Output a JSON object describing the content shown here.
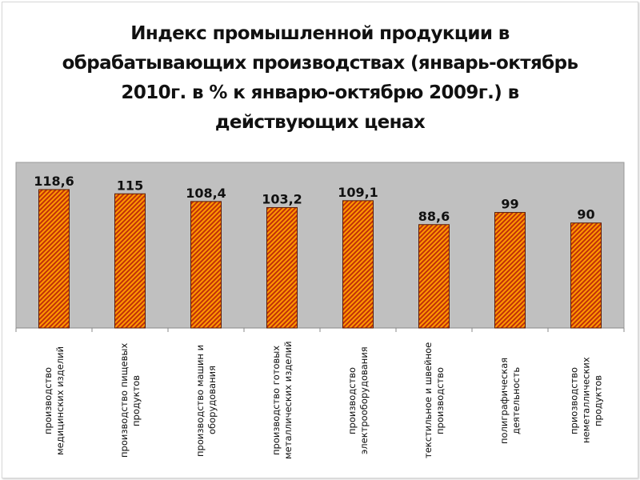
{
  "chart_data": {
    "type": "bar",
    "title": "Индекс промышленной продукции в обрабатывающих производствах (январь-октябрь 2010г. в % к январю-октябрю 2009г.) в действующих ценах",
    "categories": [
      "производство медицинских изделий",
      "производство пищевых продуктов",
      "производство машин и оборудования",
      "производство готовых металлических изделий",
      "производство электрооборудования",
      "текстильное и швейное производство",
      "полиграфическая деятельность",
      "приозводство неметаллических продуктов"
    ],
    "values": [
      118.6,
      115,
      108.4,
      103.2,
      109.1,
      88.6,
      99,
      90
    ],
    "data_labels": [
      "118,6",
      "115",
      "108,4",
      "103,2",
      "109,1",
      "88,6",
      "99",
      "90"
    ],
    "xlabel": "",
    "ylabel": "",
    "ylim": [
      0,
      142
    ],
    "grid": false,
    "legend": "none",
    "colors": {
      "plot_bg": "#c0c0c0",
      "bar_a": "#ff9a00",
      "bar_b": "#c0300a",
      "bar_border": "#5a1a00"
    }
  }
}
